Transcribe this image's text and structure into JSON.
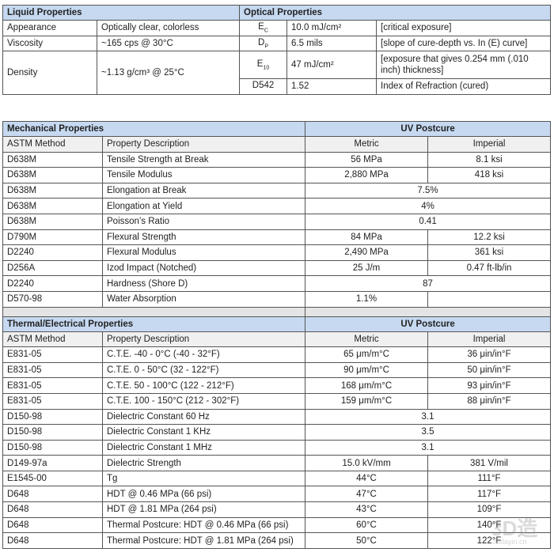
{
  "liquid": {
    "title": "Liquid Properties",
    "rows": [
      [
        "Appearance",
        "Optically clear, colorless"
      ],
      [
        "Viscosity",
        "~165 cps @ 30°C"
      ],
      [
        "Density",
        "~1.13 g/cm³ @ 25°C"
      ]
    ]
  },
  "optical": {
    "title": "Optical Properties",
    "rows": [
      {
        "sym": "E",
        "sub": "C",
        "value": "10.0 mJ/cm²",
        "desc": "[critical exposure]"
      },
      {
        "sym": "D",
        "sub": "P",
        "value": "6.5 mils",
        "desc": "[slope of cure-depth vs. In (E) curve]"
      },
      {
        "sym": "E",
        "sub": "10",
        "value": "47 mJ/cm²",
        "desc": "[exposure that gives 0.254 mm (.010 inch) thickness]"
      },
      {
        "sym": "D542",
        "sub": "",
        "value": "1.52",
        "desc": "Index of Refraction (cured)"
      }
    ]
  },
  "mechanical": {
    "title": "Mechanical Properties",
    "group": "UV Postcure",
    "cols": [
      "ASTM Method",
      "Property Description",
      "Metric",
      "Imperial"
    ],
    "rows": [
      [
        "D638M",
        "Tensile Strength at Break",
        "56 MPa",
        "8.1 ksi"
      ],
      [
        "D638M",
        "Tensile Modulus",
        "2,880 MPa",
        "418 ksi"
      ],
      [
        "D638M",
        "Elongation at Break",
        "7.5%",
        null
      ],
      [
        "D638M",
        "Elongation at Yield",
        "4%",
        null
      ],
      [
        "D638M",
        "Poisson’s Ratio",
        "0.41",
        null
      ],
      [
        "D790M",
        "Flexural Strength",
        "84 MPa",
        "12.2 ksi"
      ],
      [
        "D2240",
        "Flexural Modulus",
        "2,490 MPa",
        "361 ksi"
      ],
      [
        "D256A",
        "Izod Impact (Notched)",
        "25 J/m",
        "0.47 ft-lb/in"
      ],
      [
        "D2240",
        "Hardness (Shore D)",
        "87",
        null
      ],
      [
        "D570-98",
        "Water Absorption",
        "1.1%",
        ""
      ]
    ]
  },
  "thermal": {
    "title": "Thermal/Electrical Properties",
    "group": "UV Postcure",
    "cols": [
      "ASTM Method",
      "Property Description",
      "Metric",
      "Imperial"
    ],
    "rows": [
      [
        "E831-05",
        "C.T.E. -40 - 0°C (-40 - 32°F)",
        "65 μm/m°C",
        "36 μin/in°F"
      ],
      [
        "E831-05",
        "C.T.E. 0 - 50°C (32 - 122°F)",
        "90 μm/m°C",
        "50 μin/in°F"
      ],
      [
        "E831-05",
        "C.T.E. 50 - 100°C (122 - 212°F)",
        "168 μm/m°C",
        "93 μin/in°F"
      ],
      [
        "E831-05",
        "C.T.E. 100 - 150°C (212 - 302°F)",
        "159 μm/m°C",
        "88 μin/in°F"
      ],
      [
        "D150-98",
        "Dielectric Constant 60 Hz",
        "3.1",
        null
      ],
      [
        "D150-98",
        "Dielectric Constant 1 KHz",
        "3.5",
        null
      ],
      [
        "D150-98",
        "Dielectric Constant 1 MHz",
        "3.1",
        null
      ],
      [
        "D149-97a",
        "Dielectric Strength",
        "15.0 kV/mm",
        "381 V/mil"
      ],
      [
        "E1545-00",
        "Tg",
        "44°C",
        "111°F"
      ],
      [
        "D648",
        "HDT @ 0.46 MPa (66 psi)",
        "47°C",
        "117°F"
      ],
      [
        "D648",
        "HDT @ 1.81 MPa (264 psi)",
        "43°C",
        "109°F"
      ],
      [
        "D648",
        "Thermal Postcure: HDT @ 0.46 MPa (66 psi)",
        "60°C",
        "140°F"
      ],
      [
        "D648",
        "Thermal Postcure: HDT @ 1.81 MPa (264 psi)",
        "50°C",
        "122°F"
      ]
    ]
  },
  "watermark": {
    "logo": "3D造",
    "site": "3ddayin.cn"
  }
}
